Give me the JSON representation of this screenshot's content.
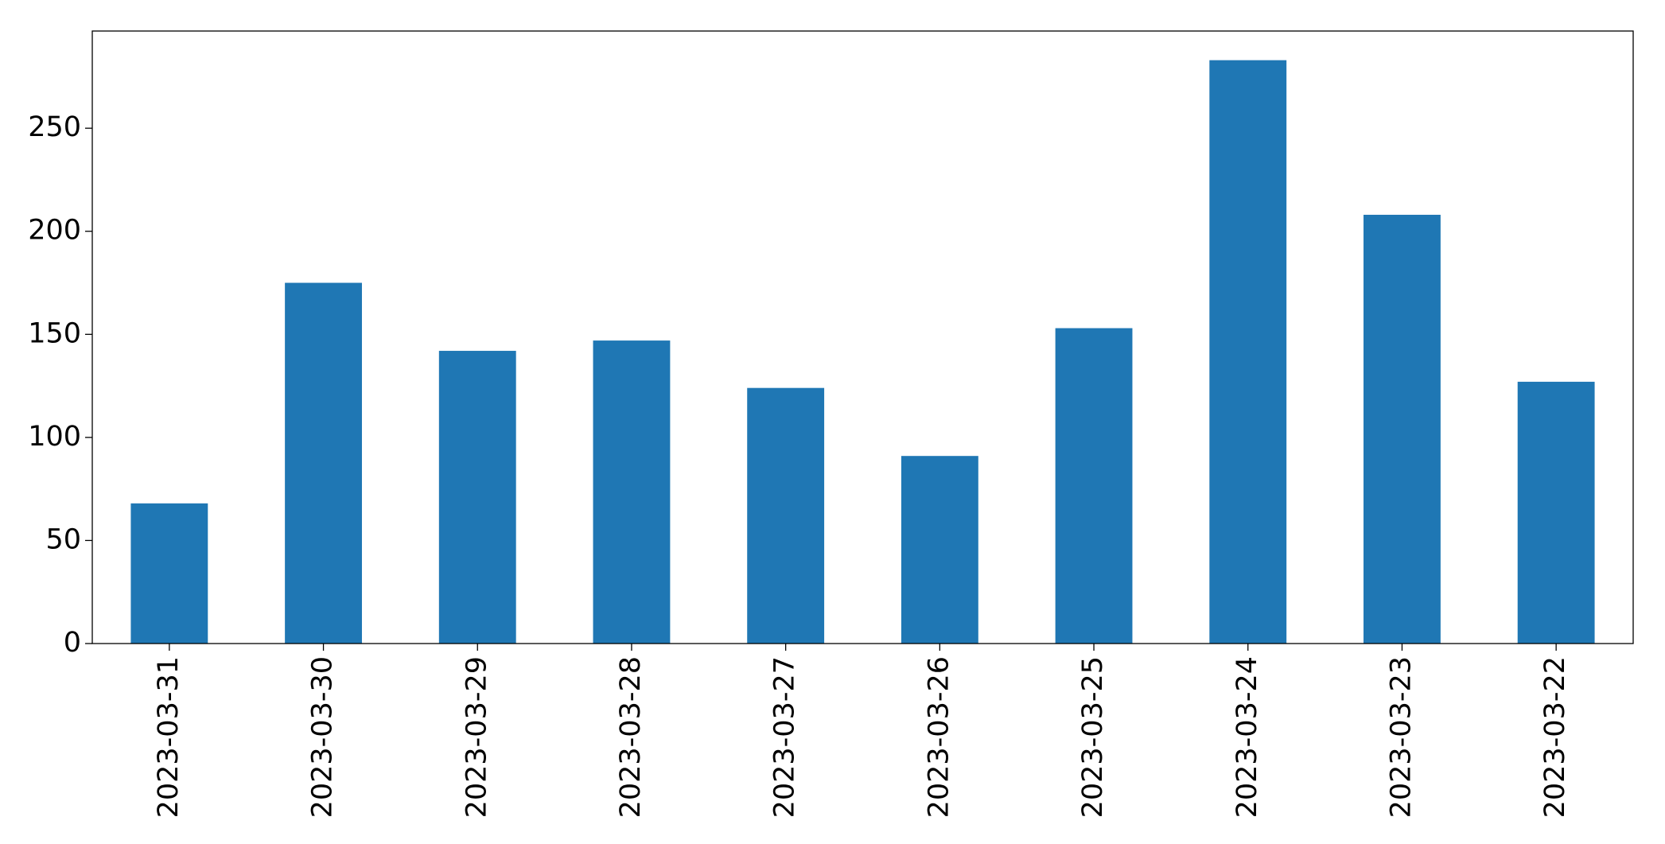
{
  "chart_data": {
    "type": "bar",
    "categories": [
      "2023-03-31",
      "2023-03-30",
      "2023-03-29",
      "2023-03-28",
      "2023-03-27",
      "2023-03-26",
      "2023-03-25",
      "2023-03-24",
      "2023-03-23",
      "2023-03-22"
    ],
    "values": [
      68,
      175,
      142,
      147,
      124,
      91,
      153,
      283,
      208,
      127
    ],
    "color": "#1f77b4",
    "ylim": [
      0,
      297.15
    ],
    "yticks": [
      0,
      50,
      100,
      150,
      200,
      250
    ],
    "grid": false
  }
}
